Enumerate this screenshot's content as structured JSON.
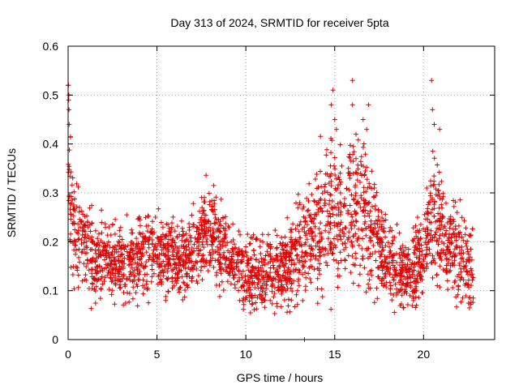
{
  "colors": {
    "series": "#e00000",
    "axis": "#000000",
    "grid": "#a0a0a0",
    "background": "#ffffff"
  },
  "chart_data": {
    "type": "scatter",
    "title": "Day 313 of 2024, SRMTID for receiver 5pta",
    "xlabel": "GPS time / hours",
    "ylabel": "SRMTID / TECUs",
    "xlim": [
      0,
      24
    ],
    "ylim": [
      0,
      0.6
    ],
    "x_ticks": [
      0,
      5,
      10,
      15,
      20
    ],
    "y_ticks": [
      0,
      0.1,
      0.2,
      0.3,
      0.4,
      0.5,
      0.6
    ],
    "x_tick_labels": [
      "0",
      "5",
      "10",
      "15",
      "20"
    ],
    "y_tick_labels": [
      "0",
      "0.1",
      "0.2",
      "0.3",
      "0.4",
      "0.5",
      "0.6"
    ],
    "grid": true,
    "marker": "plus",
    "series": [
      {
        "name": "SRMTID 5pta",
        "anchors_hours": [
          0,
          0.05,
          0.15,
          0.3,
          0.5,
          0.8,
          1.0,
          1.3,
          1.6,
          2.0,
          2.5,
          3.0,
          3.5,
          4.0,
          4.5,
          5.0,
          5.5,
          5.8,
          6.2,
          6.7,
          7.0,
          7.5,
          8.0,
          8.5,
          9.0,
          9.5,
          10.0,
          10.5,
          11.0,
          11.5,
          12.0,
          12.5,
          13.0,
          13.5,
          14.0,
          14.5,
          15.0,
          15.5,
          16.0,
          16.5,
          17.0,
          17.5,
          18.0,
          18.5,
          18.8,
          19.2,
          19.6,
          20.0,
          20.4,
          20.8,
          21.2,
          21.6,
          22.0,
          22.4,
          22.8
        ],
        "anchors_level": [
          0.33,
          0.34,
          0.27,
          0.23,
          0.21,
          0.2,
          0.19,
          0.17,
          0.16,
          0.17,
          0.16,
          0.15,
          0.16,
          0.17,
          0.17,
          0.17,
          0.17,
          0.18,
          0.17,
          0.17,
          0.18,
          0.21,
          0.22,
          0.2,
          0.17,
          0.15,
          0.13,
          0.13,
          0.14,
          0.14,
          0.15,
          0.16,
          0.18,
          0.2,
          0.22,
          0.25,
          0.27,
          0.25,
          0.26,
          0.27,
          0.23,
          0.19,
          0.16,
          0.15,
          0.14,
          0.13,
          0.15,
          0.19,
          0.24,
          0.25,
          0.2,
          0.18,
          0.17,
          0.16,
          0.14
        ],
        "anchors_spread": [
          0.08,
          0.09,
          0.07,
          0.06,
          0.05,
          0.05,
          0.05,
          0.05,
          0.04,
          0.04,
          0.04,
          0.04,
          0.04,
          0.04,
          0.04,
          0.04,
          0.04,
          0.04,
          0.04,
          0.04,
          0.04,
          0.05,
          0.05,
          0.05,
          0.04,
          0.04,
          0.04,
          0.04,
          0.04,
          0.04,
          0.04,
          0.05,
          0.06,
          0.06,
          0.07,
          0.08,
          0.08,
          0.07,
          0.08,
          0.08,
          0.07,
          0.05,
          0.04,
          0.04,
          0.04,
          0.04,
          0.04,
          0.05,
          0.07,
          0.07,
          0.05,
          0.05,
          0.05,
          0.05,
          0.05
        ],
        "sample_count": 2600,
        "outliers": [
          [
            0.0,
            0.52
          ],
          [
            0.02,
            0.52
          ],
          [
            0.04,
            0.5
          ],
          [
            0.03,
            0.49
          ],
          [
            0.05,
            0.47
          ],
          [
            0.06,
            0.44
          ],
          [
            14.8,
            0.48
          ],
          [
            14.9,
            0.51
          ],
          [
            15.0,
            0.45
          ],
          [
            15.1,
            0.43
          ],
          [
            16.0,
            0.53
          ],
          [
            16.0,
            0.48
          ],
          [
            16.6,
            0.45
          ],
          [
            16.9,
            0.48
          ],
          [
            16.8,
            0.43
          ],
          [
            16.2,
            0.42
          ],
          [
            20.45,
            0.53
          ],
          [
            20.5,
            0.47
          ],
          [
            20.6,
            0.44
          ],
          [
            20.9,
            0.43
          ],
          [
            13.3,
            0.0
          ]
        ]
      }
    ]
  }
}
